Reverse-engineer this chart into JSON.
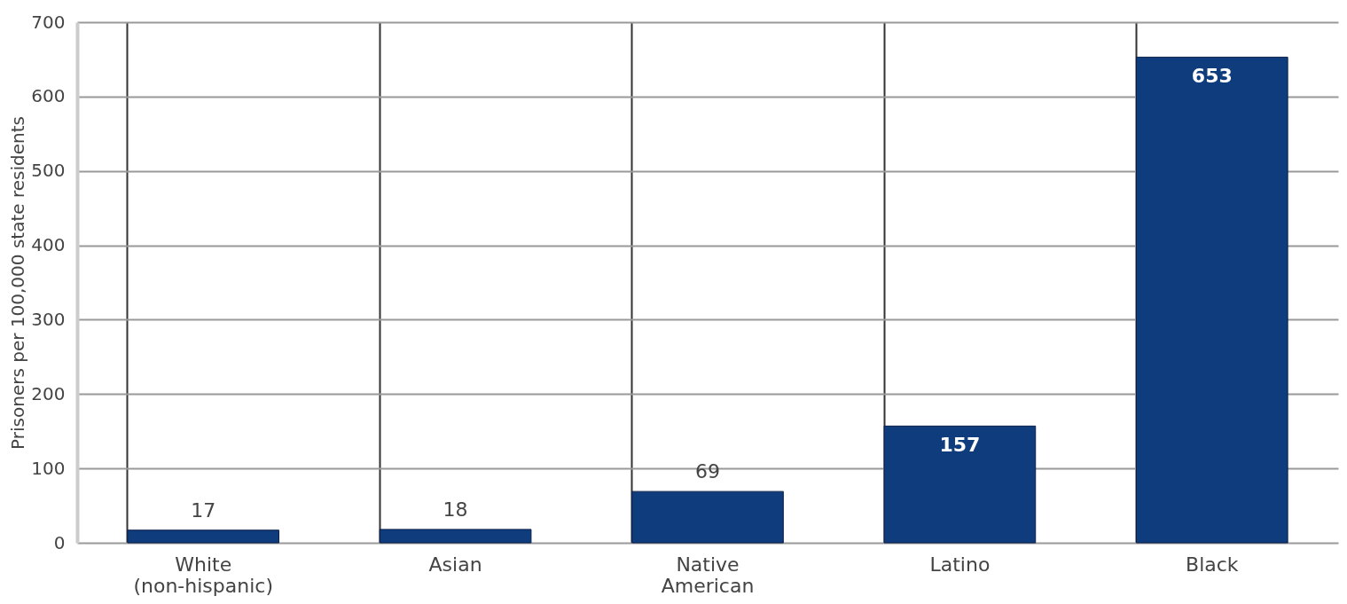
{
  "chart_data": {
    "type": "bar",
    "ylabel": "Prisoners per 100,000 state residents",
    "categories": [
      "White\n(non-hispanic)",
      "Asian",
      "Native\nAmerican",
      "Latino",
      "Black"
    ],
    "values": [
      17,
      18,
      69,
      157,
      653
    ],
    "color": "#0f3c7c",
    "ylim": [
      0,
      700
    ],
    "yticks": [
      0,
      100,
      200,
      300,
      400,
      500,
      600,
      700
    ],
    "grid": true,
    "data_labels": true
  }
}
